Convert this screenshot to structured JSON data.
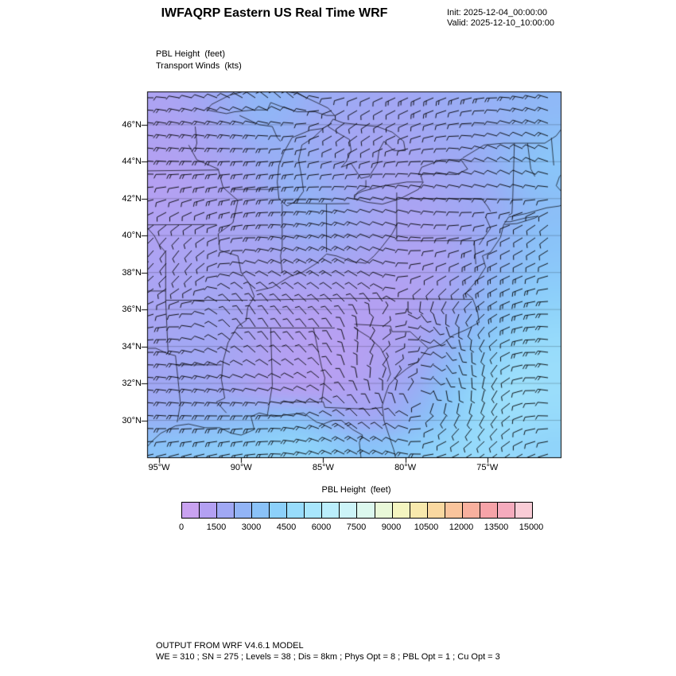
{
  "header": {
    "title": "IWFAQRP Eastern US Real Time WRF",
    "init_label": "Init: 2025-12-04_00:00:00",
    "valid_label": "Valid: 2025-12-10_10:00:00"
  },
  "plot": {
    "field_label_1": "PBL Height  (feet)",
    "field_label_2": "Transport Winds  (kts)",
    "y_tick_labels": [
      "46°N",
      "44°N",
      "42°N",
      "40°N",
      "38°N",
      "36°N",
      "34°N",
      "32°N",
      "30°N"
    ],
    "y_tick_lats": [
      46,
      44,
      42,
      40,
      38,
      36,
      34,
      32,
      30
    ],
    "x_tick_labels": [
      "95°W",
      "90°W",
      "85°W",
      "80°W",
      "75°W"
    ],
    "x_tick_lons": [
      -95,
      -90,
      -85,
      -80,
      -75
    ]
  },
  "colorbar": {
    "title": "PBL Height  (feet)",
    "tick_labels": [
      "0",
      "1500",
      "3000",
      "4500",
      "6000",
      "7500",
      "9000",
      "10500",
      "12000",
      "13500",
      "15000"
    ],
    "colors": [
      "#c9a2f0",
      "#b3a0f2",
      "#a0a8f4",
      "#92b4f6",
      "#8ac2f8",
      "#8cd0fa",
      "#98dcfb",
      "#a8e6fc",
      "#baeefc",
      "#ccf4f8",
      "#dcf8ee",
      "#e9f8d8",
      "#f4f5c0",
      "#f8e9ad",
      "#f9d8a0",
      "#f9c49c",
      "#f8b09e",
      "#f6a3a8",
      "#f5abbd",
      "#f9ccd6"
    ]
  },
  "footer": {
    "line1": "OUTPUT FROM WRF V4.6.1 MODEL",
    "line2": "WE = 310 ; SN = 275 ; Levels = 38 ; Dis = 8km ; Phys Opt = 8 ; PBL Opt = 1 ; Cu Opt = 3"
  },
  "chart_data": {
    "type": "heatmap",
    "title": "IWFAQRP Eastern US Real Time WRF",
    "fields": [
      "PBL Height (feet) shaded",
      "Transport Winds (kts) wind barbs"
    ],
    "x": {
      "label": "Longitude",
      "ticks_deg_west": [
        95,
        90,
        85,
        80,
        75
      ],
      "extent_deg_west": [
        95.73,
        70.53
      ]
    },
    "y": {
      "label": "Latitude",
      "ticks_deg_north": [
        46,
        44,
        42,
        40,
        38,
        36,
        34,
        32,
        30
      ],
      "extent_deg_north": [
        28.0,
        47.8
      ]
    },
    "colorbar_scale": {
      "units": "feet",
      "min": 0,
      "max": 15000,
      "label_step": 1500,
      "cells": 20,
      "cell_step": 750
    },
    "pbl_height_grid_feet": {
      "note": "estimated from shading; rows ordered north to south across lon 95.7W-70.5W, lat 47.8N-28.0N",
      "values": [
        [
          1000,
          1200,
          1500,
          2000,
          2400,
          2200,
          1800,
          1600,
          1500,
          1400,
          1500,
          1700,
          1900,
          2100,
          2300,
          2500
        ],
        [
          900,
          1000,
          1300,
          1800,
          2200,
          2000,
          1600,
          1400,
          1300,
          1300,
          1400,
          1600,
          1800,
          2000,
          2400,
          2800
        ],
        [
          800,
          900,
          1100,
          1400,
          1800,
          2000,
          1800,
          1500,
          1300,
          1200,
          1300,
          1500,
          1700,
          2200,
          2800,
          3200
        ],
        [
          700,
          800,
          1000,
          1200,
          1600,
          2200,
          2000,
          1600,
          1300,
          1200,
          1200,
          1400,
          1600,
          2000,
          2600,
          3000
        ],
        [
          800,
          900,
          1000,
          1100,
          1400,
          2000,
          2200,
          1800,
          1400,
          1200,
          1100,
          1300,
          1500,
          1800,
          2400,
          2800
        ],
        [
          900,
          1000,
          1100,
          1200,
          1300,
          1600,
          1800,
          1600,
          1300,
          1100,
          1000,
          1200,
          1500,
          2000,
          2600,
          3000
        ],
        [
          1000,
          1100,
          1200,
          1200,
          1200,
          1300,
          1400,
          1300,
          1100,
          1000,
          900,
          1100,
          1600,
          2200,
          2800,
          3200
        ],
        [
          1100,
          1200,
          1300,
          1200,
          1100,
          1000,
          1000,
          900,
          800,
          800,
          900,
          1200,
          1800,
          2600,
          3200,
          3600
        ],
        [
          1200,
          1300,
          1400,
          1200,
          1000,
          800,
          700,
          700,
          700,
          800,
          1000,
          1400,
          2200,
          3000,
          3600,
          4000
        ],
        [
          1300,
          1400,
          1400,
          1200,
          900,
          700,
          600,
          600,
          700,
          900,
          1200,
          1800,
          2800,
          3600,
          4200,
          4400
        ],
        [
          1400,
          1500,
          1400,
          1200,
          900,
          700,
          600,
          600,
          800,
          1100,
          1500,
          2400,
          3400,
          4200,
          4600,
          4600
        ],
        [
          1500,
          1600,
          1500,
          1300,
          1000,
          800,
          700,
          800,
          1000,
          1400,
          2000,
          3000,
          4000,
          4600,
          4800,
          4600
        ],
        [
          2000,
          2200,
          2400,
          2600,
          2800,
          3000,
          2600,
          1800,
          1400,
          1800,
          2600,
          3400,
          4200,
          4600,
          4600,
          4400
        ],
        [
          3000,
          3200,
          3400,
          3600,
          3800,
          4000,
          3800,
          3400,
          3000,
          3200,
          3600,
          4000,
          4400,
          4400,
          4200,
          4000
        ]
      ]
    },
    "winds": {
      "units": "kts",
      "depiction": "barbs",
      "typical_speed_range_kts": [
        5,
        25
      ],
      "cyclonic_circulation_center": {
        "lon_deg": -79.2,
        "lat_deg": 31.2
      }
    }
  }
}
